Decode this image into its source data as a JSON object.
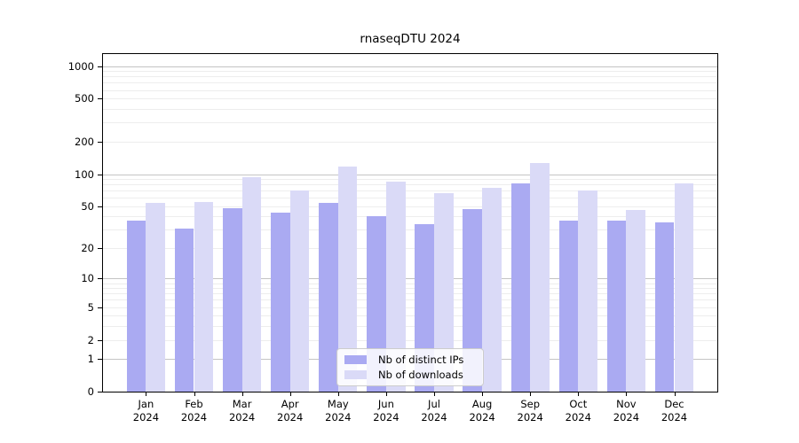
{
  "title": "rnaseqDTU 2024",
  "chart_data": {
    "type": "bar",
    "title": "rnaseqDTU 2024",
    "categories": [
      "Jan 2024",
      "Feb 2024",
      "Mar 2024",
      "Apr 2024",
      "May 2024",
      "Jun 2024",
      "Jul 2024",
      "Aug 2024",
      "Sep 2024",
      "Oct 2024",
      "Nov 2024",
      "Dec 2024"
    ],
    "x_tick_months": [
      "Jan",
      "Feb",
      "Mar",
      "Apr",
      "May",
      "Jun",
      "Jul",
      "Aug",
      "Sep",
      "Oct",
      "Nov",
      "Dec"
    ],
    "x_tick_year": "2024",
    "series": [
      {
        "name": "Nb of distinct IPs",
        "color": "#aaaaf2",
        "values": [
          37,
          31,
          48,
          44,
          54,
          40,
          34,
          47,
          82,
          37,
          37,
          35
        ]
      },
      {
        "name": "Nb of downloads",
        "color": "#dadaf7",
        "values": [
          54,
          55,
          93,
          71,
          117,
          85,
          67,
          74,
          127,
          71,
          46,
          82
        ]
      }
    ],
    "xlabel": "",
    "ylabel": "",
    "yscale": "log1p",
    "ylim": [
      0,
      1290
    ],
    "y_tick_labels": [
      "1000",
      "500",
      "200",
      "100",
      "50",
      "20",
      "10",
      "5",
      "2",
      "1",
      "0"
    ],
    "y_tick_values": [
      1000,
      500,
      200,
      100,
      50,
      20,
      10,
      5,
      2,
      1,
      0
    ],
    "major_grid_values": [
      1,
      10,
      100,
      1000
    ],
    "minor_grid_values": [
      2,
      3,
      4,
      5,
      6,
      7,
      8,
      9,
      20,
      30,
      40,
      50,
      60,
      70,
      80,
      90,
      200,
      300,
      400,
      500,
      600,
      700,
      800,
      900
    ],
    "grid": true,
    "legend_position": "lower-center-inside"
  },
  "colors": {
    "distinct_ips_bar": "#aaaaf2",
    "downloads_bar": "#dadaf7",
    "major_grid": "#c4c4c4",
    "minor_grid": "#ededed",
    "axis": "#000000",
    "legend_border": "#cccccc"
  }
}
